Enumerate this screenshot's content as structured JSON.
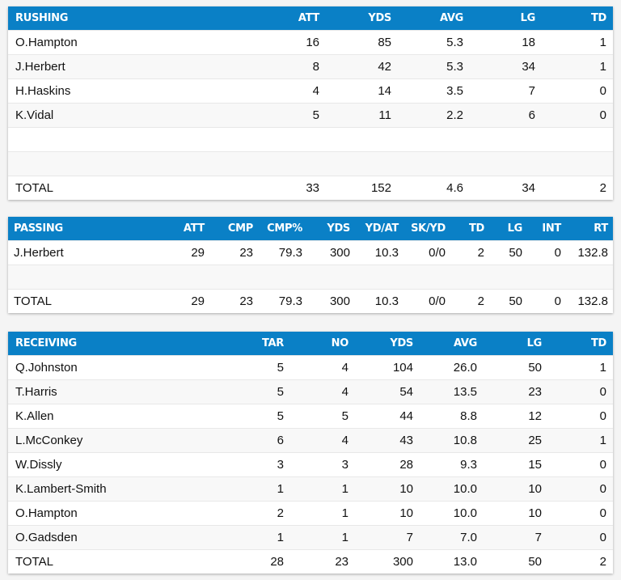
{
  "tables": [
    {
      "id": "rushing",
      "widths": [
        304,
        89,
        89,
        89,
        89,
        88
      ],
      "headers": [
        "RUSHING",
        "ATT",
        "YDS",
        "AVG",
        "LG",
        "TD"
      ],
      "rows": [
        [
          "O.Hampton",
          "16",
          "85",
          "5.3",
          "18",
          "1"
        ],
        [
          "J.Herbert",
          "8",
          "42",
          "5.3",
          "34",
          "1"
        ],
        [
          "H.Haskins",
          "4",
          "14",
          "3.5",
          "7",
          "0"
        ],
        [
          "K.Vidal",
          "5",
          "11",
          "2.2",
          "6",
          "0"
        ],
        [
          "",
          "",
          "",
          "",
          "",
          ""
        ],
        [
          "",
          "",
          "",
          "",
          "",
          ""
        ],
        [
          "TOTAL",
          "33",
          "152",
          "4.6",
          "34",
          "2"
        ]
      ]
    },
    {
      "id": "passing",
      "widths": [
        189,
        60,
        60,
        61,
        59,
        60,
        58,
        48,
        47,
        48,
        58
      ],
      "headers": [
        "PASSING",
        "ATT",
        "CMP",
        "CMP%",
        "YDS",
        "YD/AT",
        "SK/YD",
        "TD",
        "LG",
        "INT",
        "RT"
      ],
      "rows": [
        [
          "J.Herbert",
          "29",
          "23",
          "79.3",
          "300",
          "10.3",
          "0/0",
          "2",
          "50",
          "0",
          "132.8"
        ],
        [
          "",
          "",
          "",
          "",
          "",
          "",
          "",
          "",
          "",
          "",
          ""
        ],
        [
          "TOTAL",
          "29",
          "23",
          "79.3",
          "300",
          "10.3",
          "0/0",
          "2",
          "50",
          "0",
          "132.8"
        ]
      ]
    },
    {
      "id": "receiving",
      "widths": [
        269,
        80,
        80,
        80,
        79,
        80,
        80
      ],
      "headers": [
        "RECEIVING",
        "TAR",
        "NO",
        "YDS",
        "AVG",
        "LG",
        "TD"
      ],
      "rows": [
        [
          "Q.Johnston",
          "5",
          "4",
          "104",
          "26.0",
          "50",
          "1"
        ],
        [
          "T.Harris",
          "5",
          "4",
          "54",
          "13.5",
          "23",
          "0"
        ],
        [
          "K.Allen",
          "5",
          "5",
          "44",
          "8.8",
          "12",
          "0"
        ],
        [
          "L.McConkey",
          "6",
          "4",
          "43",
          "10.8",
          "25",
          "1"
        ],
        [
          "W.Dissly",
          "3",
          "3",
          "28",
          "9.3",
          "15",
          "0"
        ],
        [
          "K.Lambert-Smith",
          "1",
          "1",
          "10",
          "10.0",
          "10",
          "0"
        ],
        [
          "O.Hampton",
          "2",
          "1",
          "10",
          "10.0",
          "10",
          "0"
        ],
        [
          "O.Gadsden",
          "1",
          "1",
          "7",
          "7.0",
          "7",
          "0"
        ],
        [
          "TOTAL",
          "28",
          "23",
          "300",
          "13.0",
          "50",
          "2"
        ]
      ]
    }
  ]
}
